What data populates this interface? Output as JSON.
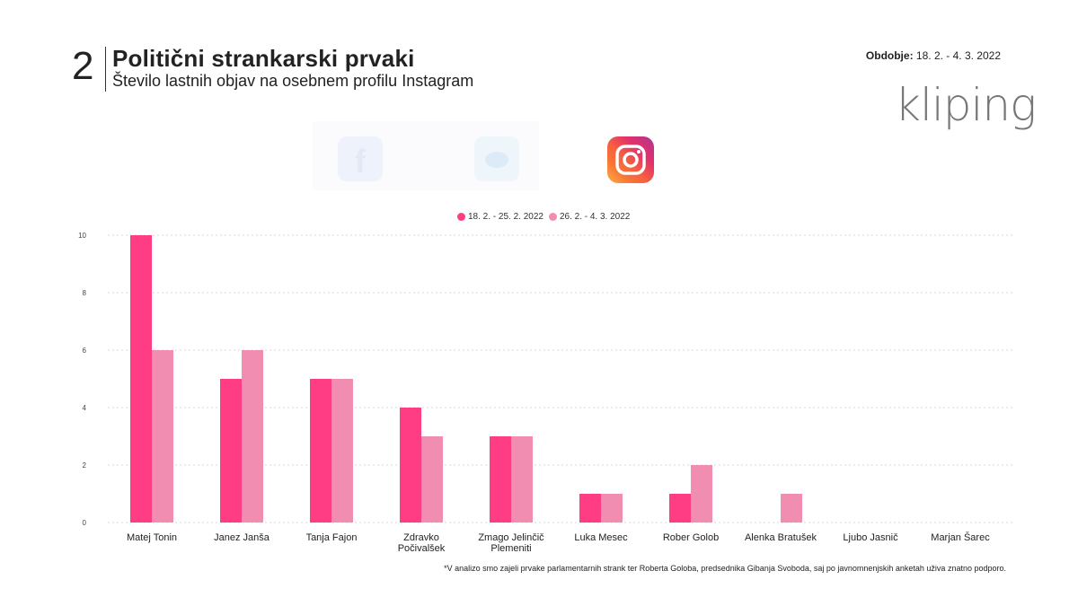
{
  "header": {
    "number": "2",
    "title": "Politični strankarski prvaki",
    "subtitle": "Število lastnih objav na osebnem profilu Instagram",
    "period_label": "Obdobje:",
    "period_value": "18. 2. - 4. 3. 2022",
    "logo_text": "kliping"
  },
  "icons": [
    "facebook-icon",
    "twitter-icon",
    "instagram-icon"
  ],
  "colors": {
    "series1": "#ff3d85",
    "series2": "#f28db2",
    "grid": "#d9d9d9",
    "brand": "#e0187a"
  },
  "chart_data": {
    "type": "bar",
    "categories": [
      "Matej Tonin",
      "Janez Janša",
      "Tanja Fajon",
      "Zdravko Počivalšek",
      "Zmago Jelinčič Plemeniti",
      "Luka Mesec",
      "Rober Golob",
      "Alenka Bratušek",
      "Ljubo Jasnič",
      "Marjan Šarec"
    ],
    "category_lines": [
      [
        "Matej Tonin"
      ],
      [
        "Janez Janša"
      ],
      [
        "Tanja Fajon"
      ],
      [
        "Zdravko",
        "Počivalšek"
      ],
      [
        "Zmago Jelinčič",
        "Plemeniti"
      ],
      [
        "Luka Mesec"
      ],
      [
        "Rober Golob"
      ],
      [
        "Alenka Bratušek"
      ],
      [
        "Ljubo Jasnič"
      ],
      [
        "Marjan Šarec"
      ]
    ],
    "series": [
      {
        "name": "18. 2. - 25. 2. 2022",
        "values": [
          10,
          5,
          5,
          4,
          3,
          1,
          1,
          0,
          0,
          0
        ]
      },
      {
        "name": "26. 2. - 4. 3. 2022",
        "values": [
          6,
          6,
          5,
          3,
          3,
          1,
          2,
          1,
          0,
          0
        ]
      }
    ],
    "ylim": [
      0,
      10
    ],
    "yticks": [
      0,
      2,
      4,
      6,
      8,
      10
    ],
    "grid": true,
    "legend": "top-center"
  },
  "footnote": "*V analizo smo zajeli prvake parlamentarnih strank ter Roberta Goloba, predsednika Gibanja Svoboda, saj po javnomnenjskih anketah uživa znatno podporo."
}
